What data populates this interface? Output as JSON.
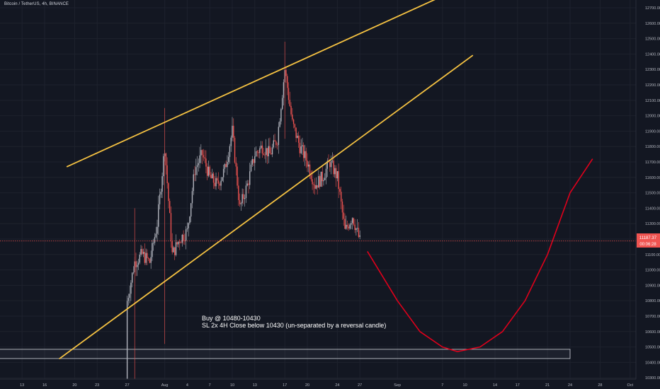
{
  "chart": {
    "symbol_title": "Bitcoin / TetherUS, 4h, BINANCE",
    "annotation_line1": "Buy @ 10480-10430",
    "annotation_line2": "SL 2x 4H Close below 10430 (un-separated by a reversal candle)",
    "last_price_label": "11187.37",
    "countdown_label": "00:06:28"
  },
  "colors": {
    "background": "#131722",
    "axis_text": "#b2b5be",
    "grid": "#1e222d",
    "up_candle": "#b2b5be",
    "down_candle": "#ef5350",
    "channel": "#f5c242",
    "projection": "#e0001b",
    "price_line": "#ef5350",
    "support_zone_border": "#d1d4dc"
  },
  "chart_data": {
    "type": "candlestick",
    "y_ticks": [
      10200,
      10300,
      10400,
      10500,
      10600,
      10700,
      10800,
      10900,
      11000,
      11100,
      11200,
      11300,
      11400,
      11500,
      11600,
      11700,
      11800,
      11900,
      12000,
      12100,
      12200,
      12300,
      12400,
      12500,
      12600,
      12700,
      12800
    ],
    "y_tick_labels": [
      "10200.00",
      "10300.00",
      "10400.00",
      "10500.00",
      "10600.00",
      "10700.00",
      "10800.00",
      "10900.00",
      "11000.00",
      "11100.00",
      "11200.00",
      "11300.00",
      "11400.00",
      "11500.00",
      "11600.00",
      "11700.00",
      "11800.00",
      "11900.00",
      "12000.00",
      "12100.00",
      "12200.00",
      "12300.00",
      "12400.00",
      "12500.00",
      "12600.00",
      "12700.00",
      "12800.00"
    ],
    "x_tick_labels": [
      "13",
      "16",
      "20",
      "23",
      "27",
      "Aug",
      "4",
      "7",
      "10",
      "13",
      "17",
      "20",
      "24",
      "27",
      "Sep",
      "7",
      "10",
      "14",
      "17",
      "21",
      "24",
      "28",
      "Oct"
    ],
    "x_tick_days": [
      -18,
      -15,
      -11,
      -8,
      -4,
      1,
      4,
      7,
      10,
      13,
      17,
      20,
      24,
      27,
      32,
      38,
      41,
      45,
      48,
      52,
      55,
      59,
      63
    ],
    "daily_closes": [
      {
        "day": -4,
        "close": 10800
      },
      {
        "day": -3,
        "close": 11050
      },
      {
        "day": -2,
        "close": 11100
      },
      {
        "day": -1,
        "close": 11050
      },
      {
        "day": 0,
        "close": 11300
      },
      {
        "day": 1,
        "close": 11800
      },
      {
        "day": 2,
        "close": 11100
      },
      {
        "day": 3,
        "close": 11200
      },
      {
        "day": 4,
        "close": 11250
      },
      {
        "day": 5,
        "close": 11650
      },
      {
        "day": 6,
        "close": 11750
      },
      {
        "day": 7,
        "close": 11600
      },
      {
        "day": 8,
        "close": 11550
      },
      {
        "day": 9,
        "close": 11650
      },
      {
        "day": 10,
        "close": 11900
      },
      {
        "day": 11,
        "close": 11400
      },
      {
        "day": 12,
        "close": 11550
      },
      {
        "day": 13,
        "close": 11750
      },
      {
        "day": 14,
        "close": 11800
      },
      {
        "day": 15,
        "close": 11750
      },
      {
        "day": 16,
        "close": 11850
      },
      {
        "day": 17,
        "close": 12300
      },
      {
        "day": 18,
        "close": 11950
      },
      {
        "day": 19,
        "close": 11800
      },
      {
        "day": 20,
        "close": 11700
      },
      {
        "day": 21,
        "close": 11550
      },
      {
        "day": 22,
        "close": 11600
      },
      {
        "day": 23,
        "close": 11700
      },
      {
        "day": 24,
        "close": 11600
      },
      {
        "day": 25,
        "close": 11250
      },
      {
        "day": 26,
        "close": 11350
      },
      {
        "day": 27,
        "close": 11187
      }
    ],
    "channel_upper": {
      "from": {
        "day": -12,
        "price": 11670
      },
      "to": {
        "day": 40,
        "price": 12820
      }
    },
    "channel_lower": {
      "from": {
        "day": -13,
        "price": 10425
      },
      "to": {
        "day": 42,
        "price": 12390
      }
    },
    "support_zone": {
      "from_day": -22,
      "to_day": 55,
      "top": 10485,
      "bottom": 10425
    },
    "projection_curve": [
      {
        "day": 28,
        "price": 11120
      },
      {
        "day": 32,
        "price": 10800
      },
      {
        "day": 35,
        "price": 10600
      },
      {
        "day": 38,
        "price": 10500
      },
      {
        "day": 40,
        "price": 10470
      },
      {
        "day": 43,
        "price": 10500
      },
      {
        "day": 46,
        "price": 10600
      },
      {
        "day": 49,
        "price": 10800
      },
      {
        "day": 52,
        "price": 11100
      },
      {
        "day": 55,
        "price": 11500
      },
      {
        "day": 58,
        "price": 11720
      }
    ],
    "last_price": 11187.37
  }
}
